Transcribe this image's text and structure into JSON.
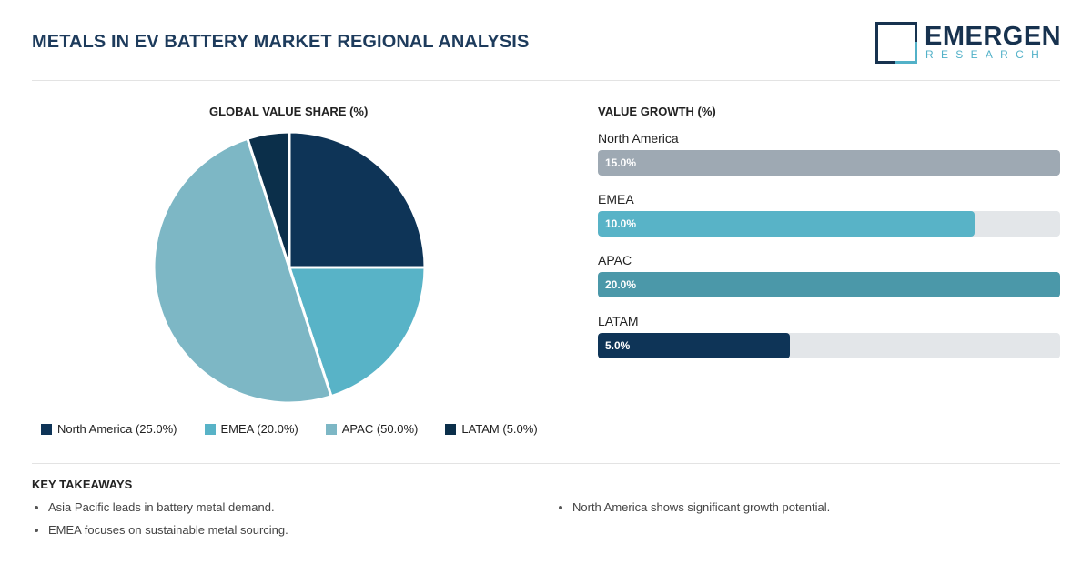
{
  "header": {
    "title": "METALS IN EV BATTERY MARKET REGIONAL ANALYSIS",
    "logo_word": "EMERGEN",
    "logo_sub": "RESEARCH"
  },
  "chart_data": [
    {
      "type": "pie",
      "title": "GLOBAL VALUE SHARE (%)",
      "categories": [
        "North America",
        "EMEA",
        "APAC",
        "LATAM"
      ],
      "values": [
        25.0,
        20.0,
        50.0,
        5.0
      ],
      "colors": [
        "#0e3457",
        "#58b3c7",
        "#7db7c5",
        "#0b2f4a"
      ],
      "legend": [
        "North America (25.0%)",
        "EMEA (20.0%)",
        "APAC (50.0%)",
        "LATAM (5.0%)"
      ],
      "legend_position": "bottom"
    },
    {
      "type": "bar",
      "orientation": "horizontal",
      "title": "VALUE GROWTH (%)",
      "categories": [
        "North America",
        "EMEA",
        "APAC",
        "LATAM"
      ],
      "values": [
        15.0,
        10.0,
        20.0,
        5.0
      ],
      "value_labels": [
        "15.0%",
        "10.0%",
        "20.0%",
        "5.0%"
      ],
      "fill_fraction": [
        1.0,
        0.815,
        1.0,
        0.415
      ],
      "colors": [
        "#9ea9b3",
        "#58b3c7",
        "#4b98a9",
        "#0e3457"
      ]
    }
  ],
  "takeaways": {
    "title": "KEY TAKEAWAYS",
    "left": [
      "Asia Pacific leads in battery metal demand.",
      "EMEA focuses on sustainable metal sourcing."
    ],
    "right": [
      "North America shows significant growth potential."
    ]
  }
}
